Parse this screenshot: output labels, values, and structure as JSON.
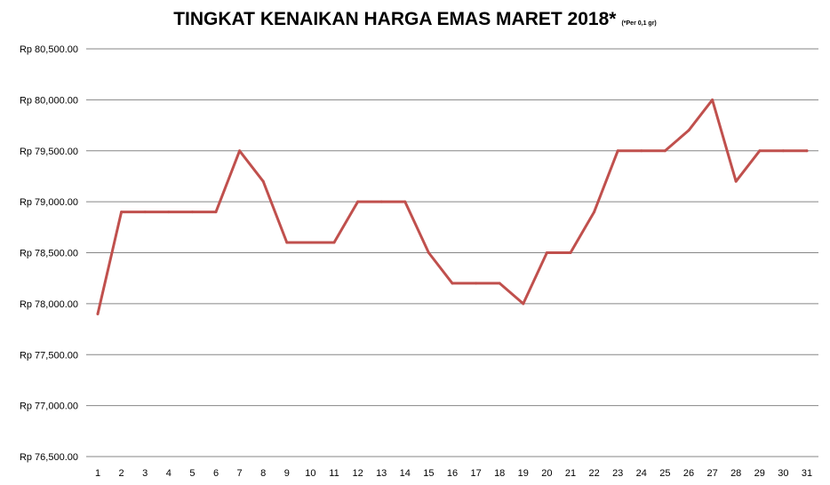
{
  "chart_data": {
    "type": "line",
    "title": "TINGKAT KENAIKAN HARGA EMAS MARET 2018*",
    "title_note": "(*Per 0,1 gr)",
    "xlabel": "",
    "ylabel": "",
    "x": [
      1,
      2,
      3,
      4,
      5,
      6,
      7,
      8,
      9,
      10,
      11,
      12,
      13,
      14,
      15,
      16,
      17,
      18,
      19,
      20,
      21,
      22,
      23,
      24,
      25,
      26,
      27,
      28,
      29,
      30,
      31
    ],
    "x_tick_labels": [
      "1",
      "2",
      "3",
      "4",
      "5",
      "6",
      "7",
      "8",
      "9",
      "10",
      "11",
      "12",
      "13",
      "14",
      "15",
      "16",
      "17",
      "18",
      "19",
      "20",
      "21",
      "22",
      "23",
      "24",
      "25",
      "26",
      "27",
      "28",
      "29",
      "30",
      "31"
    ],
    "series": [
      {
        "color": "#C0504D",
        "values": [
          77900,
          78900,
          78900,
          78900,
          78900,
          78900,
          79500,
          79200,
          78600,
          78600,
          78600,
          79000,
          79000,
          79000,
          78500,
          78200,
          78200,
          78200,
          78000,
          78500,
          78500,
          78900,
          79500,
          79500,
          79500,
          79700,
          80000,
          79200,
          79500,
          79500,
          79500
        ]
      }
    ],
    "ylim": [
      76500,
      80500
    ],
    "y_ticks": [
      76500,
      77000,
      77500,
      78000,
      78500,
      79000,
      79500,
      80000,
      80500
    ],
    "y_tick_labels": [
      "Rp 76,500.00",
      "Rp 77,000.00",
      "Rp 77,500.00",
      "Rp 78,000.00",
      "Rp 78,500.00",
      "Rp 79,000.00",
      "Rp 79,500.00",
      "Rp 80,000.00",
      "Rp 80,500.00"
    ],
    "grid": true,
    "gridline_color": "#868686",
    "legend": "none"
  }
}
